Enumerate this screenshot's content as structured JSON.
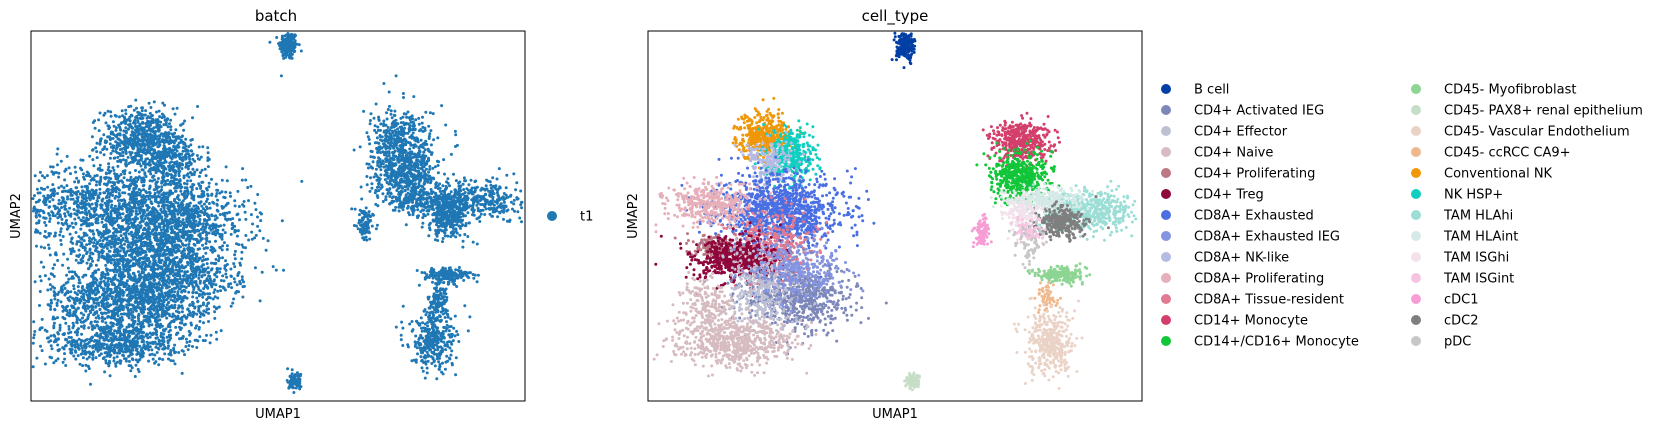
{
  "chart_data": [
    {
      "type": "scatter",
      "title": "batch",
      "xlabel": "UMAP1",
      "ylabel": "UMAP2",
      "grid": false,
      "legend_position": "right",
      "legend": [
        {
          "name": "t1",
          "color": "#1f77b4"
        }
      ],
      "clusters": [
        {
          "category": "t1",
          "x": 0.82,
          "y": 9.35,
          "sx": 0.14,
          "sy": 0.22,
          "n": 180
        },
        {
          "category": "t1",
          "x": -3.75,
          "y": 6.55,
          "sx": 0.55,
          "sy": 0.45,
          "n": 520
        },
        {
          "category": "t1",
          "x": -2.85,
          "y": 5.95,
          "sx": 0.55,
          "sy": 0.45,
          "n": 380
        },
        {
          "category": "t1",
          "x": -4.6,
          "y": 4.55,
          "sx": 1.4,
          "sy": 0.6,
          "n": 1100
        },
        {
          "category": "t1",
          "x": -2.4,
          "y": 3.9,
          "sx": 1.0,
          "sy": 0.6,
          "n": 800
        },
        {
          "category": "t1",
          "x": -4.2,
          "y": 3.1,
          "sx": 0.9,
          "sy": 0.45,
          "n": 500
        },
        {
          "category": "t1",
          "x": -2.6,
          "y": 2.3,
          "sx": 1.0,
          "sy": 0.55,
          "n": 650
        },
        {
          "category": "t1",
          "x": -4.9,
          "y": 1.6,
          "sx": 0.9,
          "sy": 0.5,
          "n": 550
        },
        {
          "category": "t1",
          "x": -4.5,
          "y": 0.25,
          "sx": 1.0,
          "sy": 0.35,
          "n": 600
        },
        {
          "category": "t1",
          "x": -3.3,
          "y": 1.4,
          "sx": 0.9,
          "sy": 0.6,
          "n": 600
        },
        {
          "category": "t1",
          "x": 4.3,
          "y": 6.35,
          "sx": 0.5,
          "sy": 0.55,
          "n": 480
        },
        {
          "category": "t1",
          "x": 4.35,
          "y": 5.35,
          "sx": 0.5,
          "sy": 0.35,
          "n": 380
        },
        {
          "category": "t1",
          "x": 6.3,
          "y": 4.65,
          "sx": 1.0,
          "sy": 0.3,
          "n": 500
        },
        {
          "category": "t1",
          "x": 5.7,
          "y": 4.05,
          "sx": 0.35,
          "sy": 0.3,
          "n": 250
        },
        {
          "category": "t1",
          "x": 5.0,
          "y": 4.6,
          "sx": 0.7,
          "sy": 0.15,
          "n": 160
        },
        {
          "category": "t1",
          "x": 3.15,
          "y": 3.85,
          "sx": 0.12,
          "sy": 0.25,
          "n": 90
        },
        {
          "category": "t1",
          "x": 5.65,
          "y": 2.35,
          "sx": 0.35,
          "sy": 0.12,
          "n": 170
        },
        {
          "category": "t1",
          "x": 5.35,
          "y": 1.5,
          "sx": 0.15,
          "sy": 0.3,
          "n": 120
        },
        {
          "category": "t1",
          "x": 5.2,
          "y": 0.3,
          "sx": 0.35,
          "sy": 0.45,
          "n": 320
        },
        {
          "category": "t1",
          "x": 1.05,
          "y": -0.9,
          "sx": 0.12,
          "sy": 0.12,
          "n": 90
        }
      ]
    },
    {
      "type": "scatter",
      "title": "cell_type",
      "xlabel": "UMAP1",
      "ylabel": "UMAP2",
      "grid": false,
      "legend_position": "right",
      "legend": [
        {
          "name": "B cell",
          "color": "#023fa5"
        },
        {
          "name": "CD4+ Activated IEG",
          "color": "#7d87b9"
        },
        {
          "name": "CD4+ Effector",
          "color": "#bec1d4"
        },
        {
          "name": "CD4+ Naive",
          "color": "#d6bcc0"
        },
        {
          "name": "CD4+ Proliferating",
          "color": "#bb7784"
        },
        {
          "name": "CD4+ Treg",
          "color": "#8e063b"
        },
        {
          "name": "CD8A+ Exhausted",
          "color": "#4a6fe3"
        },
        {
          "name": "CD8A+ Exhausted IEG",
          "color": "#8595e1"
        },
        {
          "name": "CD8A+ NK-like",
          "color": "#b5bbe3"
        },
        {
          "name": "CD8A+ Proliferating",
          "color": "#e6afb9"
        },
        {
          "name": "CD8A+ Tissue-resident",
          "color": "#e07b91"
        },
        {
          "name": "CD14+ Monocyte",
          "color": "#d33f6a"
        },
        {
          "name": "CD14+/CD16+ Monocyte",
          "color": "#11c638"
        },
        {
          "name": "CD45- Myofibroblast",
          "color": "#8dd593"
        },
        {
          "name": "CD45- PAX8+ renal epithelium",
          "color": "#c6dec7"
        },
        {
          "name": "CD45- Vascular Endothelium",
          "color": "#ead3c6"
        },
        {
          "name": "CD45- ccRCC CA9+",
          "color": "#f0b98d"
        },
        {
          "name": "Conventional NK",
          "color": "#ef9708"
        },
        {
          "name": "NK HSP+",
          "color": "#0fcfc0"
        },
        {
          "name": "TAM HLAhi",
          "color": "#9cded6"
        },
        {
          "name": "TAM HLAint",
          "color": "#d5eae7"
        },
        {
          "name": "TAM ISGhi",
          "color": "#f3e1eb"
        },
        {
          "name": "TAM ISGint",
          "color": "#f6c4e1"
        },
        {
          "name": "cDC1",
          "color": "#f79cd4"
        },
        {
          "name": "cDC2",
          "color": "#7f7f7f"
        },
        {
          "name": "pDC",
          "color": "#c7c7c7"
        }
      ],
      "clusters": [
        {
          "category": "B cell",
          "x": 0.82,
          "y": 9.35,
          "sx": 0.14,
          "sy": 0.22,
          "n": 200
        },
        {
          "category": "Conventional NK",
          "x": -3.5,
          "y": 6.6,
          "sx": 0.4,
          "sy": 0.35,
          "n": 420
        },
        {
          "category": "NK HSP+",
          "x": -2.65,
          "y": 6.0,
          "sx": 0.35,
          "sy": 0.4,
          "n": 380
        },
        {
          "category": "CD8A+ NK-like",
          "x": -3.3,
          "y": 5.8,
          "sx": 0.35,
          "sy": 0.35,
          "n": 180
        },
        {
          "category": "CD8A+ Exhausted",
          "x": -3.0,
          "y": 4.3,
          "sx": 0.95,
          "sy": 0.55,
          "n": 1200
        },
        {
          "category": "CD8A+ Proliferating",
          "x": -5.1,
          "y": 4.5,
          "sx": 0.65,
          "sy": 0.3,
          "n": 400
        },
        {
          "category": "CD8A+ Tissue-resident",
          "x": -3.2,
          "y": 3.2,
          "sx": 0.6,
          "sy": 0.55,
          "n": 420
        },
        {
          "category": "CD4+ Proliferating",
          "x": -4.9,
          "y": 3.2,
          "sx": 0.35,
          "sy": 0.2,
          "n": 180
        },
        {
          "category": "CD4+ Treg",
          "x": -4.35,
          "y": 2.8,
          "sx": 0.65,
          "sy": 0.35,
          "n": 550
        },
        {
          "category": "CD4+ Activated IEG",
          "x": -2.45,
          "y": 1.65,
          "sx": 0.8,
          "sy": 0.5,
          "n": 700
        },
        {
          "category": "CD4+ Effector",
          "x": -3.5,
          "y": 1.9,
          "sx": 0.6,
          "sy": 0.6,
          "n": 350
        },
        {
          "category": "CD8A+ Exhausted IEG",
          "x": -2.4,
          "y": 2.5,
          "sx": 0.7,
          "sy": 0.45,
          "n": 320
        },
        {
          "category": "CD4+ Naive",
          "x": -4.4,
          "y": 0.3,
          "sx": 0.9,
          "sy": 0.35,
          "n": 650
        },
        {
          "category": "CD4+ Naive",
          "x": -5.2,
          "y": 1.4,
          "sx": 0.45,
          "sy": 0.45,
          "n": 200
        },
        {
          "category": "CD14+ Monocyte",
          "x": 4.3,
          "y": 6.45,
          "sx": 0.45,
          "sy": 0.3,
          "n": 420
        },
        {
          "category": "CD14+/CD16+ Monocyte",
          "x": 4.35,
          "y": 5.4,
          "sx": 0.45,
          "sy": 0.35,
          "n": 450
        },
        {
          "category": "TAM HLAhi",
          "x": 6.3,
          "y": 4.3,
          "sx": 0.75,
          "sy": 0.3,
          "n": 550
        },
        {
          "category": "TAM HLAint",
          "x": 5.1,
          "y": 4.65,
          "sx": 0.6,
          "sy": 0.18,
          "n": 280
        },
        {
          "category": "cDC2",
          "x": 5.5,
          "y": 3.95,
          "sx": 0.35,
          "sy": 0.25,
          "n": 300
        },
        {
          "category": "TAM ISGhi",
          "x": 4.3,
          "y": 4.2,
          "sx": 0.3,
          "sy": 0.25,
          "n": 120
        },
        {
          "category": "TAM ISGint",
          "x": 4.6,
          "y": 3.7,
          "sx": 0.25,
          "sy": 0.2,
          "n": 80
        },
        {
          "category": "cDC1",
          "x": 3.15,
          "y": 3.7,
          "sx": 0.1,
          "sy": 0.22,
          "n": 100
        },
        {
          "category": "pDC",
          "x": 4.5,
          "y": 3.3,
          "sx": 0.25,
          "sy": 0.35,
          "n": 60
        },
        {
          "category": "CD45- Myofibroblast",
          "x": 5.5,
          "y": 2.35,
          "sx": 0.35,
          "sy": 0.12,
          "n": 200
        },
        {
          "category": "CD45- ccRCC CA9+",
          "x": 5.1,
          "y": 1.6,
          "sx": 0.15,
          "sy": 0.25,
          "n": 60
        },
        {
          "category": "CD45- Vascular Endothelium",
          "x": 5.2,
          "y": 0.3,
          "sx": 0.35,
          "sy": 0.5,
          "n": 380
        },
        {
          "category": "CD45- PAX8+ renal epithelium",
          "x": 1.05,
          "y": -0.9,
          "sx": 0.12,
          "sy": 0.12,
          "n": 100
        }
      ]
    }
  ]
}
